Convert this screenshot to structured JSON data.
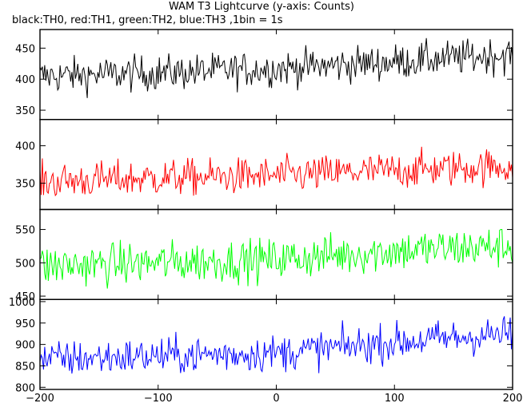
{
  "chart_data": {
    "type": "line",
    "title": "WAM T3 Lightcurve (y-axis: Counts)",
    "subtitle": "black:TH0, red:TH1, green:TH2, blue:TH3 ,1bin = 1s",
    "x_range": [
      -200,
      200
    ],
    "x_ticks": [
      -200,
      -100,
      0,
      100,
      200
    ],
    "bin_size_s": 1,
    "grid": false,
    "series": [
      {
        "name": "TH0",
        "color": "#000000",
        "ylim": [
          335,
          480
        ],
        "y_ticks": [
          350,
          400,
          450
        ],
        "trend": [
          {
            "x": -200,
            "y": 405
          },
          {
            "x": -100,
            "y": 410
          },
          {
            "x": 0,
            "y": 417
          },
          {
            "x": 100,
            "y": 428
          },
          {
            "x": 200,
            "y": 440
          }
        ],
        "noise_sigma": 20,
        "min_observed": 336,
        "max_observed": 480
      },
      {
        "name": "TH1",
        "color": "#ff0000",
        "ylim": [
          315,
          435
        ],
        "y_ticks": [
          350,
          400
        ],
        "trend": [
          {
            "x": -200,
            "y": 352
          },
          {
            "x": -100,
            "y": 357
          },
          {
            "x": 0,
            "y": 360
          },
          {
            "x": 100,
            "y": 367
          },
          {
            "x": 200,
            "y": 373
          }
        ],
        "noise_sigma": 17,
        "min_observed": 318,
        "max_observed": 435
      },
      {
        "name": "TH2",
        "color": "#00ff00",
        "ylim": [
          445,
          580
        ],
        "y_ticks": [
          450,
          500,
          550
        ],
        "trend": [
          {
            "x": -200,
            "y": 495
          },
          {
            "x": -100,
            "y": 500
          },
          {
            "x": 0,
            "y": 505
          },
          {
            "x": 100,
            "y": 518
          },
          {
            "x": 200,
            "y": 525
          }
        ],
        "noise_sigma": 22,
        "min_observed": 448,
        "max_observed": 578
      },
      {
        "name": "TH3",
        "color": "#0000ff",
        "ylim": [
          795,
          1005
        ],
        "y_ticks": [
          800,
          850,
          900,
          950,
          1000
        ],
        "trend": [
          {
            "x": -200,
            "y": 865
          },
          {
            "x": -100,
            "y": 873
          },
          {
            "x": 0,
            "y": 880
          },
          {
            "x": 100,
            "y": 905
          },
          {
            "x": 200,
            "y": 925
          }
        ],
        "noise_sigma": 30,
        "min_observed": 800,
        "max_observed": 1002
      }
    ]
  }
}
